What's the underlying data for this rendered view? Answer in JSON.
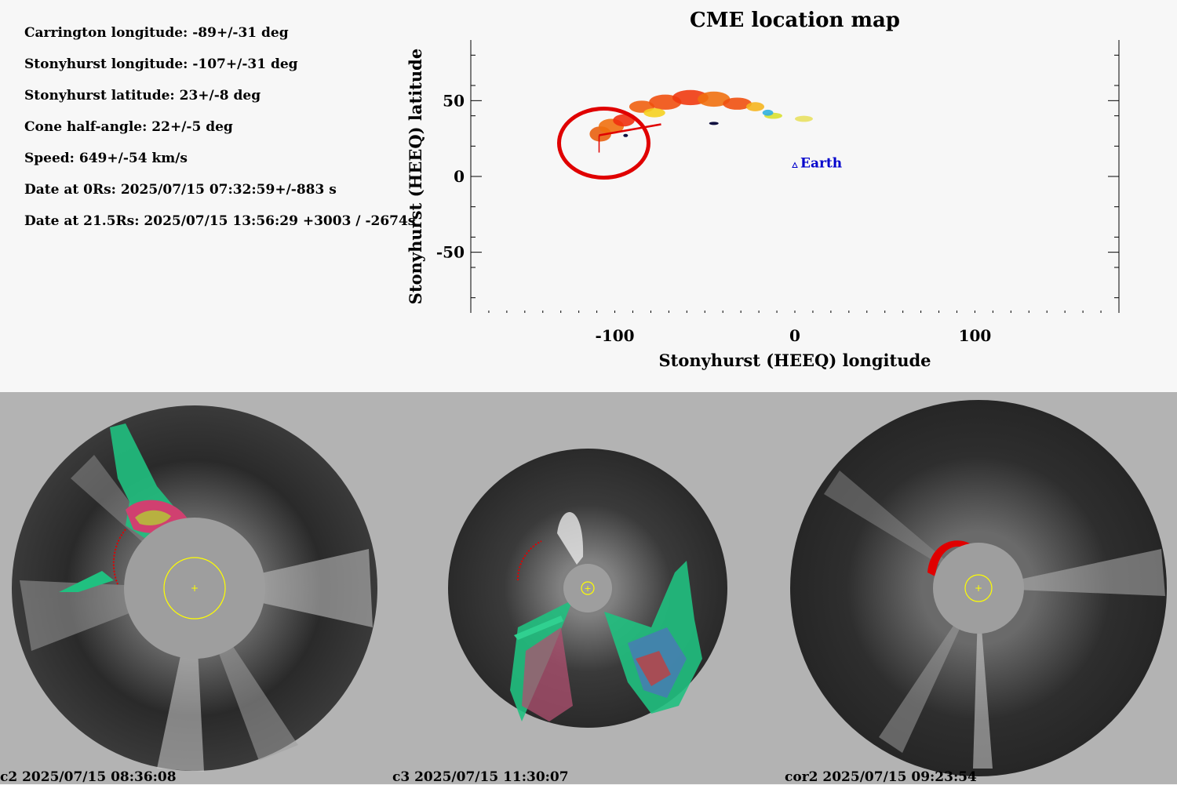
{
  "parameters": [
    {
      "key": "carrington_longitude",
      "text": "Carrington longitude: -89+/-31 deg"
    },
    {
      "key": "stonyhurst_longitude",
      "text": "Stonyhurst longitude: -107+/-31 deg"
    },
    {
      "key": "stonyhurst_latitude",
      "text": "Stonyhurst latitude: 23+/-8 deg"
    },
    {
      "key": "cone_half_angle",
      "text": "Cone half-angle: 22+/-5 deg"
    },
    {
      "key": "speed",
      "text": "Speed: 649+/-54 km/s"
    },
    {
      "key": "date_0rs",
      "text": "Date at 0Rs: 2025/07/15 07:32:59+/-883 s"
    },
    {
      "key": "date_21_5rs",
      "text": "Date at 21.5Rs: 2025/07/15 13:56:29 +3003 / -2674s"
    }
  ],
  "chart_data": {
    "type": "scatter",
    "title": "CME location map",
    "xlabel": "Stonyhurst (HEEQ) longitude",
    "ylabel": "Stonyhurst (HEEQ) latitude",
    "xlim": [
      -180,
      180
    ],
    "ylim": [
      -90,
      90
    ],
    "x_ticks": [
      -100,
      0,
      100
    ],
    "y_ticks": [
      50,
      0,
      -50
    ],
    "x_tick_labels": [
      "-100",
      "0",
      "100"
    ],
    "y_tick_labels": [
      "50",
      "0",
      "-50"
    ],
    "grid": false,
    "source_marker": {
      "lon": -107,
      "lat": 23,
      "color": "#e00000"
    },
    "earth": {
      "label": "Earth",
      "lon": 0,
      "lat": 7,
      "color": "#0000cc"
    },
    "density_blobs": [
      {
        "lon": -108,
        "lat": 28,
        "rx": 6,
        "ry": 5,
        "color": "#e86010"
      },
      {
        "lon": -102,
        "lat": 33,
        "rx": 7,
        "ry": 5,
        "color": "#f07010"
      },
      {
        "lon": -95,
        "lat": 37,
        "rx": 6,
        "ry": 4,
        "color": "#f03010"
      },
      {
        "lon": -85,
        "lat": 46,
        "rx": 7,
        "ry": 4,
        "color": "#f06010"
      },
      {
        "lon": -72,
        "lat": 49,
        "rx": 9,
        "ry": 5,
        "color": "#f05010"
      },
      {
        "lon": -58,
        "lat": 52,
        "rx": 10,
        "ry": 5,
        "color": "#f03a10"
      },
      {
        "lon": -45,
        "lat": 51,
        "rx": 9,
        "ry": 5,
        "color": "#f07010"
      },
      {
        "lon": -32,
        "lat": 48,
        "rx": 8,
        "ry": 4,
        "color": "#f05010"
      },
      {
        "lon": -22,
        "lat": 46,
        "rx": 5,
        "ry": 3,
        "color": "#f5b520"
      },
      {
        "lon": -78,
        "lat": 42,
        "rx": 6,
        "ry": 3,
        "color": "#f5d020"
      },
      {
        "lon": -12,
        "lat": 40,
        "rx": 5,
        "ry": 2,
        "color": "#d8e030"
      },
      {
        "lon": 5,
        "lat": 38,
        "rx": 5,
        "ry": 2,
        "color": "#e8e060"
      },
      {
        "lon": -15,
        "lat": 42,
        "rx": 3,
        "ry": 2,
        "color": "#30b0e0"
      }
    ]
  },
  "panels": [
    {
      "label": "c2 2025/07/15 08:36:08",
      "instrument": "c2"
    },
    {
      "label": "c3 2025/07/15 11:30:07",
      "instrument": "c3"
    },
    {
      "label": "cor2 2025/07/15 09:23:54",
      "instrument": "cor2"
    }
  ],
  "colors": {
    "background_top": "#f7f7f7",
    "background_bottom": "#b3b3b3",
    "cme_marker": "#e00000",
    "earth": "#0000cc",
    "sun_circle": "#ffff00"
  }
}
